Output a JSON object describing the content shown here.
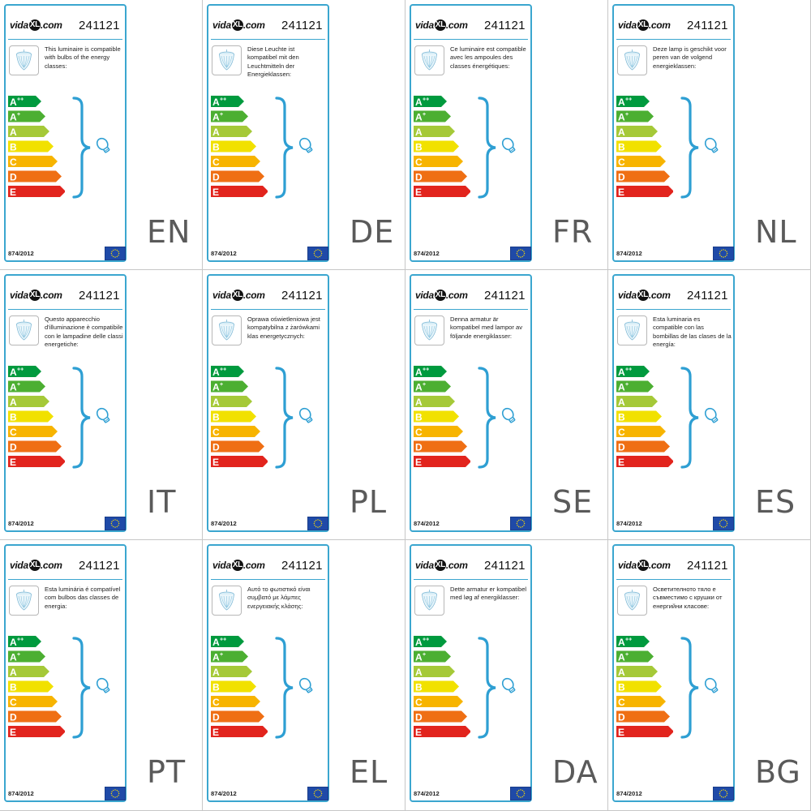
{
  "brand": {
    "logo_pre": "vida",
    "logo_mark": "XL",
    "logo_post": ".com"
  },
  "energy_classes": [
    {
      "label": "A",
      "sup": "++",
      "color": "#009a3e"
    },
    {
      "label": "A",
      "sup": "+",
      "color": "#4caf32"
    },
    {
      "label": "A",
      "sup": "",
      "color": "#a5c938"
    },
    {
      "label": "B",
      "sup": "",
      "color": "#f1e100"
    },
    {
      "label": "C",
      "sup": "",
      "color": "#f7b400"
    },
    {
      "label": "D",
      "sup": "",
      "color": "#ef6f14"
    },
    {
      "label": "E",
      "sup": "",
      "color": "#e2241d"
    }
  ],
  "colors": {
    "card_border": "#3ba6cf",
    "bracket": "#2e9fd3",
    "eu_flag": "#1f4aa8",
    "eu_stars": "#ffdd00"
  },
  "icons": {
    "lamp": "chandelier-icon",
    "bulb": "light-bulb-icon",
    "flag": "eu-flag-icon"
  },
  "panels": [
    {
      "lang": "EN",
      "code": "241121",
      "regulation": "874/2012",
      "text": "This luminaire is compatible with bulbs of the energy classes:"
    },
    {
      "lang": "DE",
      "code": "241121",
      "regulation": "874/2012",
      "text": "Diese Leuchte ist kompatibel mit den Leuchtmitteln der Energieklassen:"
    },
    {
      "lang": "FR",
      "code": "241121",
      "regulation": "874/2012",
      "text": "Ce luminaire est compatible avec les ampoules des classes énergétiques:"
    },
    {
      "lang": "NL",
      "code": "241121",
      "regulation": "874/2012",
      "text": "Deze lamp is geschikt voor peren van de volgend energieklassen:"
    },
    {
      "lang": "IT",
      "code": "241121",
      "regulation": "874/2012",
      "text": "Questo apparecchio d'illuminazione è compatibile con le lampadine delle classi energetiche:"
    },
    {
      "lang": "PL",
      "code": "241121",
      "regulation": "874/2012",
      "text": "Oprawa oświetleniowa jest kompatybilna z żarówkami klas energetycznych:"
    },
    {
      "lang": "SE",
      "code": "241121",
      "regulation": "874/2012",
      "text": "Denna armatur är kompatibel med lampor av följande energiklasser:"
    },
    {
      "lang": "ES",
      "code": "241121",
      "regulation": "874/2012",
      "text": "Esta luminaria es compatible con las bombillas de las clases de la energía:"
    },
    {
      "lang": "PT",
      "code": "241121",
      "regulation": "874/2012",
      "text": "Esta luminária é compatível com bulbos das classes de energia:"
    },
    {
      "lang": "EL",
      "code": "241121",
      "regulation": "874/2012",
      "text": "Αυτό το φωτιστικό είναι συμβατό με λάμπες ενεργειακής κλάσης:"
    },
    {
      "lang": "DA",
      "code": "241121",
      "regulation": "874/2012",
      "text": "Dette armatur er kompatibel med løg af energiklasser:"
    },
    {
      "lang": "BG",
      "code": "241121",
      "regulation": "874/2012",
      "text": "Осветителното тяло е съвместимо с крушки от енергийни класове:"
    }
  ]
}
